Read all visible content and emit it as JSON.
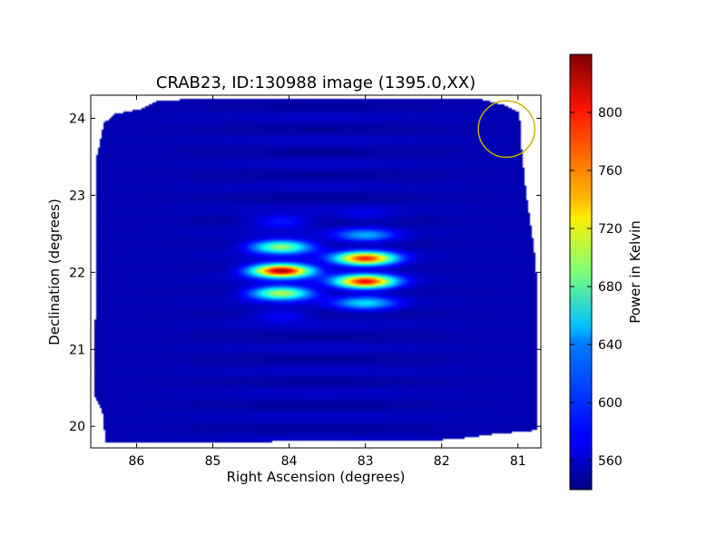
{
  "chart_data": {
    "type": "heatmap",
    "title": "CRAB23, ID:130988 image (1395.0,XX)",
    "xlabel": "Right Ascension (degrees)",
    "ylabel": "Declination (degrees)",
    "xlim": [
      86.6,
      80.7
    ],
    "ylim": [
      19.72,
      24.3
    ],
    "x_reversed": true,
    "x_ticks": [
      86,
      85,
      84,
      83,
      82,
      81
    ],
    "y_ticks": [
      20,
      21,
      22,
      23,
      24
    ],
    "colorbar": {
      "label": "Power in Kelvin",
      "range": [
        540,
        840
      ],
      "ticks": [
        560,
        600,
        640,
        680,
        720,
        760,
        800
      ],
      "colormap": "jet"
    },
    "background_level": 555,
    "footprint": [
      [
        86.43,
        23.93
      ],
      [
        86.3,
        24.05
      ],
      [
        85.95,
        24.12
      ],
      [
        85.75,
        24.22
      ],
      [
        85.15,
        24.26
      ],
      [
        81.55,
        24.26
      ],
      [
        81.2,
        24.18
      ],
      [
        80.98,
        24.08
      ],
      [
        80.95,
        23.6
      ],
      [
        80.9,
        23.1
      ],
      [
        80.76,
        22.1
      ],
      [
        80.75,
        19.95
      ],
      [
        81.3,
        19.9
      ],
      [
        81.7,
        19.85
      ],
      [
        82.05,
        19.82
      ],
      [
        84.5,
        19.8
      ],
      [
        86.4,
        19.78
      ],
      [
        86.45,
        20.2
      ],
      [
        86.55,
        20.4
      ],
      [
        86.52,
        23.5
      ]
    ],
    "sources": [
      {
        "ra": 84.1,
        "dec": 22.66,
        "peak": 590
      },
      {
        "ra": 84.1,
        "dec": 22.33,
        "peak": 700
      },
      {
        "ra": 84.1,
        "dec": 22.02,
        "peak": 830
      },
      {
        "ra": 84.1,
        "dec": 21.73,
        "peak": 710
      },
      {
        "ra": 84.1,
        "dec": 21.44,
        "peak": 580
      },
      {
        "ra": 83.0,
        "dec": 22.48,
        "peak": 625
      },
      {
        "ra": 83.0,
        "dec": 22.18,
        "peak": 790
      },
      {
        "ra": 83.0,
        "dec": 21.88,
        "peak": 800
      },
      {
        "ra": 83.0,
        "dec": 21.6,
        "peak": 640
      },
      {
        "ra": 83.0,
        "dec": 22.75,
        "peak": 570
      }
    ],
    "marker_circle": {
      "ra": 81.15,
      "dec": 23.86,
      "radius_deg": 0.37,
      "color": "#c8b400"
    }
  }
}
